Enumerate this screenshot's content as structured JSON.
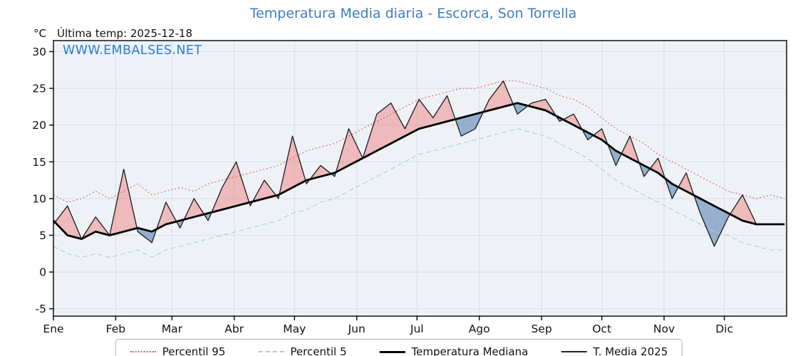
{
  "header": {
    "title": "Temperatura Media diaria - Escorca, Son Torrella",
    "y_unit": "°C",
    "last_temp": "Última temp: 2025-12-18",
    "watermark": "WWW.EMBALSES.NET"
  },
  "legend": {
    "items": [
      {
        "label": "Percentil 95",
        "line": "dotted",
        "color": "#e05c5c",
        "width": 2
      },
      {
        "label": "Percentil 5",
        "line": "dashed",
        "color": "#a5cfe3",
        "width": 2
      },
      {
        "label": "Temperatura Mediana",
        "line": "solid",
        "color": "#000000",
        "width": 3
      },
      {
        "label": "T. Media 2025",
        "line": "solid",
        "color": "#222222",
        "width": 2
      }
    ]
  },
  "chart_data": {
    "type": "line",
    "title": "Temperatura Media diaria - Escorca, Son Torrella",
    "xlabel": "",
    "ylabel": "°C",
    "ylim": [
      -6,
      31.5
    ],
    "y_ticks": [
      -5,
      0,
      5,
      10,
      15,
      20,
      25,
      30
    ],
    "grid": true,
    "legend_position": "bottom",
    "x_unit": "day_of_year",
    "x_weekly": [
      1,
      8,
      15,
      22,
      29,
      36,
      43,
      50,
      57,
      64,
      71,
      78,
      85,
      92,
      99,
      106,
      113,
      120,
      127,
      134,
      141,
      148,
      155,
      162,
      169,
      176,
      183,
      190,
      197,
      204,
      211,
      218,
      225,
      232,
      239,
      246,
      253,
      260,
      267,
      274,
      281,
      288,
      295,
      302,
      309,
      316,
      323,
      330,
      337,
      344,
      351,
      358,
      365
    ],
    "month_ticks": [
      {
        "label": "Ene",
        "day": 1
      },
      {
        "label": "Feb",
        "day": 32
      },
      {
        "label": "Mar",
        "day": 60
      },
      {
        "label": "Abr",
        "day": 91
      },
      {
        "label": "May",
        "day": 121
      },
      {
        "label": "Jun",
        "day": 152
      },
      {
        "label": "Jul",
        "day": 182
      },
      {
        "label": "Ago",
        "day": 213
      },
      {
        "label": "Sep",
        "day": 244
      },
      {
        "label": "Oct",
        "day": 274
      },
      {
        "label": "Nov",
        "day": 305
      },
      {
        "label": "Dic",
        "day": 335
      }
    ],
    "series": [
      {
        "name": "Percentil 95",
        "color": "#e05c5c",
        "dash": "dotted",
        "width": 1.1,
        "values": [
          10.5,
          9.5,
          10,
          11,
          10,
          11,
          12,
          10.5,
          11,
          11.5,
          11,
          12,
          12.5,
          13,
          13.5,
          14,
          14.5,
          15.5,
          16.5,
          17,
          17.5,
          18.5,
          19.5,
          20.5,
          21.5,
          22.5,
          23.5,
          24,
          24.5,
          25,
          25,
          25.5,
          26,
          26,
          25.5,
          25,
          24,
          23.5,
          22.5,
          21,
          19.5,
          18.5,
          17.5,
          16,
          15,
          14,
          13,
          12,
          11,
          10.5,
          10,
          10.5,
          10
        ]
      },
      {
        "name": "Percentil 5",
        "color": "#a5cfe3",
        "dash": "dashed",
        "width": 1.1,
        "values": [
          3.5,
          2.5,
          2,
          2.5,
          2,
          2.5,
          3,
          2,
          3,
          3.5,
          4,
          4.5,
          5,
          5.5,
          6,
          6.5,
          7,
          8,
          8.5,
          9.5,
          10,
          11,
          12,
          13,
          14,
          15,
          16,
          16.5,
          17,
          17.5,
          18,
          18.5,
          19,
          19.5,
          19,
          18.5,
          17.5,
          16.5,
          15.5,
          14,
          12.5,
          11.5,
          10.5,
          9.5,
          8.5,
          7.5,
          6.5,
          5.5,
          5,
          4,
          3.5,
          3,
          3
        ]
      },
      {
        "name": "Temperatura Mediana",
        "color": "#000000",
        "dash": "solid",
        "width": 2.8,
        "values": [
          7,
          5,
          4.5,
          5.5,
          5,
          5.5,
          6,
          5.5,
          6.5,
          7,
          7.5,
          8,
          8.5,
          9,
          9.5,
          10,
          10.5,
          11.5,
          12.5,
          13,
          13.5,
          14.5,
          15.5,
          16.5,
          17.5,
          18.5,
          19.5,
          20,
          20.5,
          21,
          21.5,
          22,
          22.5,
          23,
          22.5,
          22,
          21,
          20,
          19,
          18,
          16.5,
          15.5,
          14.5,
          13.5,
          12,
          11,
          10,
          9,
          8,
          7,
          6.5,
          6.5,
          6.5
        ]
      },
      {
        "name": "T. Media 2025",
        "color": "#1a1a1a",
        "dash": "solid",
        "width": 1.3,
        "values": [
          6.5,
          9,
          4.5,
          7.5,
          5,
          14,
          5.5,
          4,
          9.5,
          6,
          10,
          7,
          11.5,
          15,
          9,
          12.5,
          10,
          18.5,
          12,
          14.5,
          13,
          19.5,
          15.5,
          21.5,
          23,
          19.5,
          23.5,
          21,
          24,
          18.5,
          19.5,
          23.5,
          26,
          21.5,
          23,
          23.5,
          20.5,
          21.5,
          18,
          19.5,
          14.5,
          18.5,
          13,
          15.5,
          10,
          13.5,
          8,
          3.5,
          7.5,
          10.5,
          6.5
        ]
      }
    ],
    "fills": {
      "between": [
        "T. Media 2025",
        "Temperatura Mediana"
      ],
      "above_color": "rgba(240,130,130,0.50)",
      "below_color": "rgba(100,140,185,0.65)"
    }
  }
}
